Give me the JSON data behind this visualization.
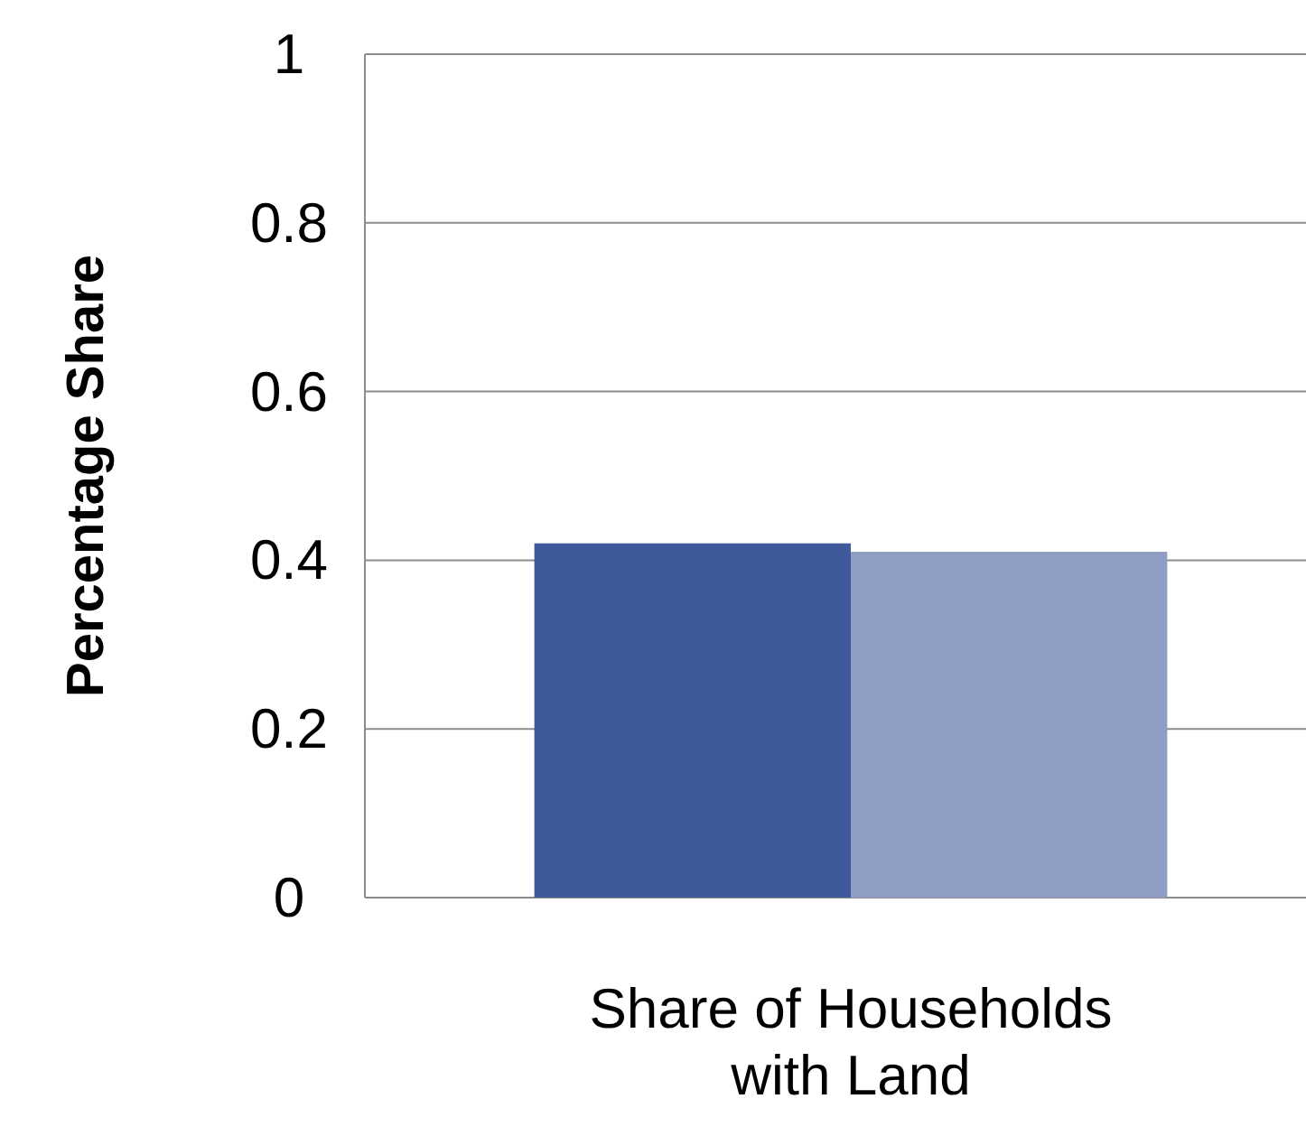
{
  "chart_data": {
    "type": "bar",
    "ylabel": "Percentage Share",
    "categories": [
      "Share of Households with Land"
    ],
    "series": [
      {
        "color": "#3f5a9a",
        "values": [
          0.42
        ]
      },
      {
        "color": "#8f9dc4",
        "values": [
          0.41
        ]
      }
    ],
    "ylim": [
      0,
      1
    ],
    "yticks": [
      0,
      0.2,
      0.4,
      0.6,
      0.8,
      1
    ],
    "grid": "y"
  }
}
